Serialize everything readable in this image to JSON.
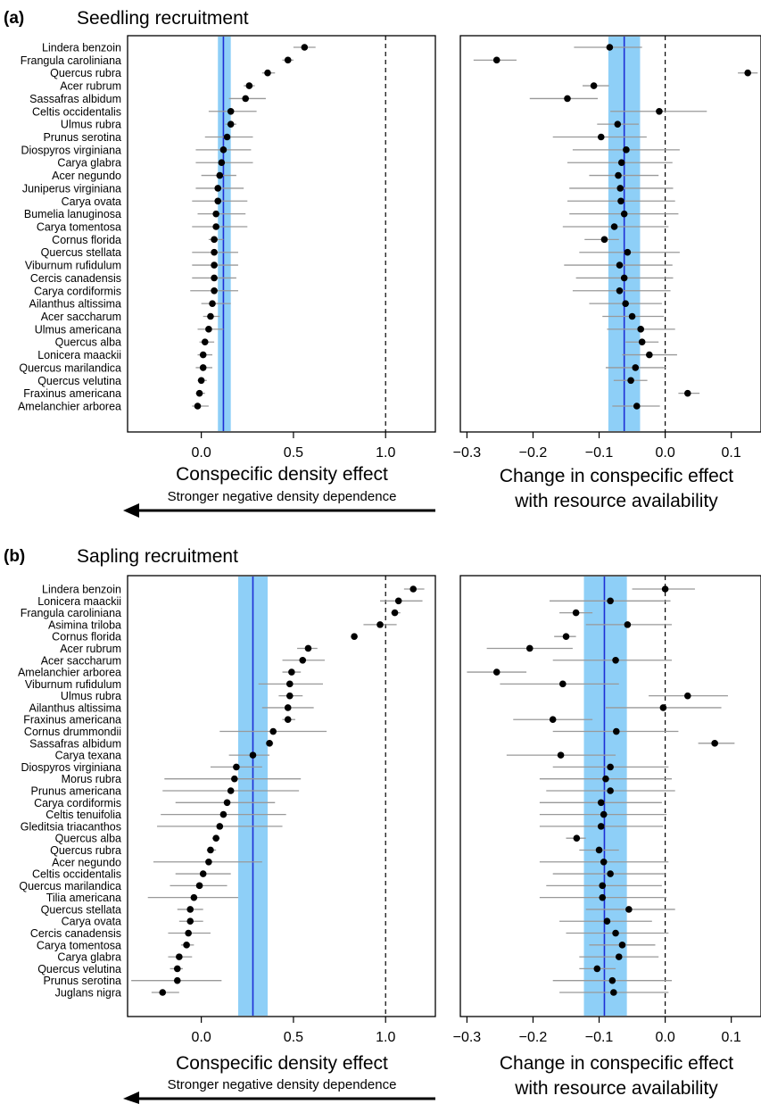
{
  "panels": [
    {
      "panel_label": "(a)",
      "panel_title": "Seedling recruitment",
      "arrow_text": "Stronger negative density dependence"
    },
    {
      "panel_label": "(b)",
      "panel_title": "Sapling recruitment",
      "arrow_text": "Stronger negative density dependence"
    }
  ],
  "colors": {
    "band": "#8ecff7",
    "mean_line": "#1d2fd6",
    "point": "#000000",
    "whisker": "#999999"
  },
  "chart_data": [
    {
      "type": "scatter",
      "subtype": "coefficient-plot",
      "panel": "(a)",
      "xlabel": "Conspecific density effect",
      "xlim": [
        -0.4,
        1.27
      ],
      "xticks": [
        0.0,
        0.5,
        1.0
      ],
      "xtick_labels": [
        "0.0",
        "0.5",
        "1.0"
      ],
      "reference_line": 1.0,
      "mean": 0.12,
      "band": [
        0.09,
        0.16
      ],
      "species": [
        "Lindera benzoin",
        "Frangula caroliniana",
        "Quercus rubra",
        "Acer rubrum",
        "Sassafras albidum",
        "Celtis occidentalis",
        "Ulmus rubra",
        "Prunus serotina",
        "Diospyros virginiana",
        "Carya glabra",
        "Acer negundo",
        "Juniperus virginiana",
        "Carya ovata",
        "Bumelia lanuginosa",
        "Carya tomentosa",
        "Cornus florida",
        "Quercus stellata",
        "Viburnum rufidulum",
        "Cercis canadensis",
        "Carya cordiformis",
        "Ailanthus altissima",
        "Acer saccharum",
        "Ulmus americana",
        "Quercus alba",
        "Lonicera maackii",
        "Quercus marilandica",
        "Quercus velutina",
        "Fraxinus americana",
        "Amelanchier arborea"
      ],
      "estimate": [
        0.56,
        0.47,
        0.36,
        0.26,
        0.24,
        0.16,
        0.16,
        0.14,
        0.12,
        0.11,
        0.1,
        0.09,
        0.09,
        0.08,
        0.08,
        0.07,
        0.07,
        0.07,
        0.07,
        0.07,
        0.06,
        0.05,
        0.04,
        0.02,
        0.01,
        0.01,
        0.0,
        -0.01,
        -0.02
      ],
      "lower": [
        0.5,
        0.44,
        0.33,
        0.23,
        0.15,
        0.04,
        0.13,
        0.02,
        -0.03,
        -0.03,
        0.0,
        -0.03,
        -0.05,
        -0.02,
        -0.05,
        0.04,
        -0.05,
        -0.05,
        -0.05,
        -0.06,
        0.0,
        0.01,
        -0.02,
        -0.01,
        -0.02,
        -0.03,
        -0.02,
        -0.03,
        -0.05
      ],
      "upper": [
        0.62,
        0.5,
        0.4,
        0.29,
        0.35,
        0.3,
        0.19,
        0.28,
        0.27,
        0.28,
        0.19,
        0.23,
        0.25,
        0.24,
        0.25,
        0.12,
        0.2,
        0.2,
        0.19,
        0.2,
        0.16,
        0.1,
        0.12,
        0.07,
        0.06,
        0.06,
        0.03,
        0.02,
        0.04
      ]
    },
    {
      "type": "scatter",
      "subtype": "coefficient-plot",
      "panel": "(a)",
      "xlabel": "Change in conspecific effect with resource availability",
      "xlim": [
        -0.31,
        0.145
      ],
      "xticks": [
        -0.3,
        -0.2,
        -0.1,
        0.0,
        0.1
      ],
      "xtick_labels": [
        "−0.3",
        "−0.2",
        "−0.1",
        "0.0",
        "0.1"
      ],
      "reference_line": 0.0,
      "mean": -0.062,
      "band": [
        -0.086,
        -0.038
      ],
      "estimate": [
        -0.084,
        -0.255,
        0.125,
        -0.108,
        -0.148,
        -0.009,
        -0.072,
        -0.097,
        -0.059,
        -0.066,
        -0.071,
        -0.068,
        -0.067,
        -0.062,
        -0.077,
        -0.092,
        -0.057,
        -0.069,
        -0.062,
        -0.069,
        -0.06,
        -0.05,
        -0.037,
        -0.035,
        -0.024,
        -0.045,
        -0.052,
        0.034,
        -0.043
      ],
      "lower": [
        -0.138,
        -0.29,
        0.11,
        -0.125,
        -0.205,
        -0.083,
        -0.103,
        -0.17,
        -0.14,
        -0.148,
        -0.115,
        -0.145,
        -0.148,
        -0.145,
        -0.155,
        -0.122,
        -0.13,
        -0.153,
        -0.135,
        -0.14,
        -0.115,
        -0.095,
        -0.088,
        -0.06,
        -0.065,
        -0.09,
        -0.078,
        0.02,
        -0.08
      ],
      "upper": [
        -0.035,
        -0.225,
        0.14,
        -0.085,
        -0.102,
        0.063,
        -0.04,
        -0.028,
        0.022,
        0.011,
        -0.01,
        0.012,
        0.015,
        0.02,
        0.005,
        -0.07,
        0.022,
        0.011,
        0.012,
        0.008,
        -0.005,
        -0.002,
        0.015,
        -0.01,
        0.018,
        0.001,
        -0.027,
        0.052,
        -0.008
      ]
    },
    {
      "type": "scatter",
      "subtype": "coefficient-plot",
      "panel": "(b)",
      "xlabel": "Conspecific density effect",
      "xlim": [
        -0.4,
        1.27
      ],
      "xticks": [
        0.0,
        0.5,
        1.0
      ],
      "xtick_labels": [
        "0.0",
        "0.5",
        "1.0"
      ],
      "reference_line": 1.0,
      "mean": 0.28,
      "band": [
        0.2,
        0.36
      ],
      "species": [
        "Lindera benzoin",
        "Lonicera maackii",
        "Frangula caroliniana",
        "Asimina triloba",
        "Cornus florida",
        "Acer rubrum",
        "Acer saccharum",
        "Amelanchier arborea",
        "Viburnum rufidulum",
        "Ulmus rubra",
        "Ailanthus altissima",
        "Fraxinus americana",
        "Cornus drummondii",
        "Sassafras albidum",
        "Carya texana",
        "Diospyros virginiana",
        "Morus rubra",
        "Prunus americana",
        "Carya cordiformis",
        "Celtis tenuifolia",
        "Gleditsia triacanthos",
        "Quercus alba",
        "Quercus rubra",
        "Acer negundo",
        "Celtis occidentalis",
        "Quercus marilandica",
        "Tilia americana",
        "Quercus stellata",
        "Carya ovata",
        "Cercis canadensis",
        "Carya tomentosa",
        "Carya glabra",
        "Quercus velutina",
        "Prunus serotina",
        "Juglans nigra"
      ],
      "estimate": [
        1.15,
        1.07,
        1.05,
        0.97,
        0.83,
        0.58,
        0.55,
        0.49,
        0.48,
        0.48,
        0.47,
        0.47,
        0.39,
        0.37,
        0.28,
        0.19,
        0.18,
        0.16,
        0.14,
        0.12,
        0.1,
        0.08,
        0.05,
        0.04,
        0.01,
        -0.01,
        -0.04,
        -0.06,
        -0.06,
        -0.07,
        -0.08,
        -0.12,
        -0.13,
        -0.13,
        -0.21
      ],
      "lower": [
        1.1,
        0.97,
        1.03,
        0.88,
        0.83,
        0.52,
        0.44,
        0.44,
        0.31,
        0.42,
        0.33,
        0.44,
        0.1,
        0.35,
        0.15,
        0.05,
        -0.2,
        -0.21,
        -0.14,
        -0.22,
        -0.24,
        0.06,
        0.03,
        -0.26,
        -0.14,
        -0.17,
        -0.29,
        -0.13,
        -0.12,
        -0.18,
        -0.11,
        -0.18,
        -0.17,
        -0.38,
        -0.27
      ],
      "upper": [
        1.21,
        1.2,
        1.08,
        1.06,
        0.84,
        0.63,
        0.67,
        0.54,
        0.66,
        0.55,
        0.61,
        0.51,
        0.68,
        0.39,
        0.37,
        0.33,
        0.54,
        0.53,
        0.4,
        0.46,
        0.44,
        0.1,
        0.08,
        0.33,
        0.16,
        0.14,
        0.2,
        0.01,
        0.01,
        0.05,
        -0.04,
        -0.05,
        -0.1,
        0.11,
        -0.12
      ]
    },
    {
      "type": "scatter",
      "subtype": "coefficient-plot",
      "panel": "(b)",
      "xlabel": "Change in conspecific effect with resource availability",
      "xlim": [
        -0.31,
        0.145
      ],
      "xticks": [
        -0.3,
        -0.2,
        -0.1,
        0.0,
        0.1
      ],
      "xtick_labels": [
        "−0.3",
        "−0.2",
        "−0.1",
        "0.0",
        "0.1"
      ],
      "reference_line": 0.0,
      "mean": -0.092,
      "band": [
        -0.123,
        -0.058
      ],
      "estimate": [
        0.0,
        -0.083,
        -0.135,
        -0.057,
        -0.15,
        -0.205,
        -0.075,
        -0.255,
        -0.155,
        0.034,
        -0.003,
        -0.17,
        -0.074,
        0.075,
        -0.158,
        -0.083,
        -0.09,
        -0.083,
        -0.097,
        -0.093,
        -0.097,
        -0.134,
        -0.1,
        -0.093,
        -0.083,
        -0.095,
        -0.095,
        -0.055,
        -0.088,
        -0.075,
        -0.065,
        -0.07,
        -0.103,
        -0.08,
        -0.078
      ],
      "lower": [
        -0.05,
        -0.175,
        -0.16,
        -0.12,
        -0.168,
        -0.27,
        -0.17,
        -0.3,
        -0.25,
        -0.025,
        -0.09,
        -0.23,
        -0.17,
        0.05,
        -0.24,
        -0.17,
        -0.19,
        -0.18,
        -0.19,
        -0.19,
        -0.19,
        -0.15,
        -0.13,
        -0.19,
        -0.17,
        -0.18,
        -0.19,
        -0.12,
        -0.16,
        -0.15,
        -0.115,
        -0.13,
        -0.13,
        -0.17,
        -0.16
      ],
      "upper": [
        0.045,
        0.008,
        -0.11,
        0.01,
        -0.135,
        -0.14,
        0.01,
        -0.21,
        -0.07,
        0.095,
        0.085,
        -0.11,
        0.02,
        0.105,
        -0.075,
        0.005,
        0.01,
        0.015,
        -0.005,
        0.002,
        -0.003,
        -0.12,
        -0.07,
        0.005,
        0.0,
        -0.005,
        0.002,
        0.015,
        -0.02,
        0.005,
        -0.015,
        -0.01,
        -0.075,
        0.01,
        0.005
      ]
    }
  ]
}
